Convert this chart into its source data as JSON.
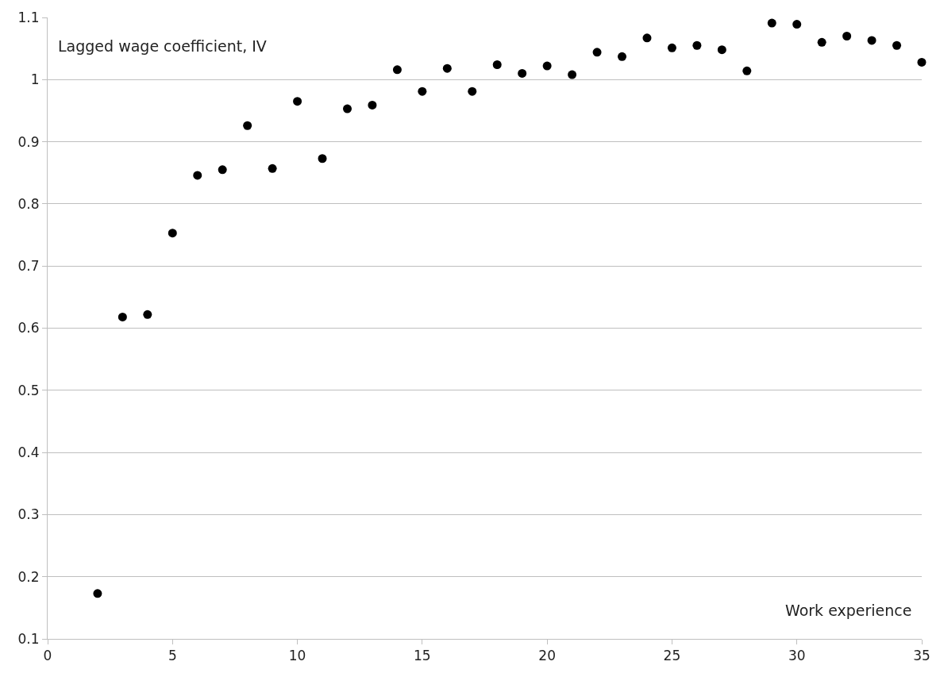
{
  "chart_data": {
    "type": "scatter",
    "xlabel": "Work experience",
    "ylabel": "Lagged wage coefficient, IV",
    "x": [
      2,
      3,
      4,
      5,
      6,
      7,
      8,
      9,
      10,
      11,
      12,
      13,
      14,
      15,
      16,
      17,
      18,
      19,
      20,
      21,
      22,
      23,
      24,
      25,
      26,
      27,
      28,
      29,
      30,
      31,
      32,
      33,
      34,
      35
    ],
    "series": [
      {
        "color": "#000000",
        "values": [
          0.173,
          0.618,
          0.622,
          0.753,
          0.846,
          0.855,
          0.926,
          0.857,
          0.965,
          0.873,
          0.953,
          0.959,
          1.016,
          0.981,
          1.018,
          0.981,
          1.024,
          1.01,
          1.022,
          1.008,
          1.044,
          1.037,
          1.067,
          1.051,
          1.055,
          1.048,
          1.014,
          1.091,
          1.089,
          1.06,
          1.07,
          1.063,
          1.055,
          1.028
        ]
      }
    ],
    "xlim": [
      0,
      35
    ],
    "xticks": [
      0,
      5,
      10,
      15,
      20,
      25,
      30,
      35
    ],
    "ylim": [
      0.1,
      1.1
    ],
    "yticks": [
      0.1,
      0.2,
      0.3,
      0.4,
      0.5,
      0.6,
      0.7,
      0.8,
      0.9,
      1,
      1.1
    ],
    "grid": "y",
    "marker": "circle",
    "legend": false
  }
}
